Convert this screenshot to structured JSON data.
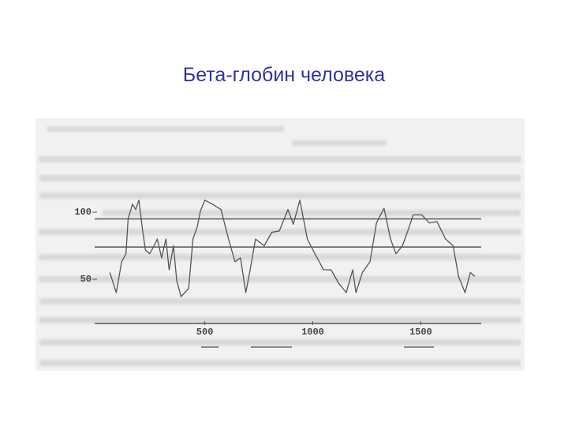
{
  "chart_data": {
    "type": "line",
    "title": "Бета-глобин человека",
    "x": [
      60,
      90,
      115,
      135,
      145,
      165,
      180,
      195,
      210,
      225,
      245,
      265,
      280,
      300,
      320,
      335,
      355,
      370,
      390,
      425,
      445,
      465,
      480,
      500,
      535,
      575,
      610,
      640,
      665,
      690,
      710,
      735,
      775,
      810,
      845,
      885,
      910,
      940,
      975,
      1010,
      1050,
      1085,
      1120,
      1155,
      1185,
      1200,
      1230,
      1265,
      1295,
      1330,
      1360,
      1385,
      1415,
      1440,
      1465,
      1505,
      1540,
      1575,
      1615,
      1650,
      1675,
      1705,
      1730,
      1750
    ],
    "series": [
      {
        "color": "#555555",
        "values": [
          55,
          40,
          63,
          69,
          95,
          106,
          102,
          109,
          89,
          72,
          69,
          75,
          80,
          66,
          80,
          57,
          75,
          49,
          37,
          43,
          80,
          89,
          101,
          109,
          106,
          102,
          80,
          63,
          66,
          40,
          57,
          80,
          75,
          85,
          86,
          102,
          91,
          109,
          80,
          69,
          57,
          57,
          47,
          40,
          57,
          40,
          55,
          63,
          92,
          103,
          80,
          69,
          75,
          86,
          98,
          98,
          92,
          93,
          80,
          75,
          52,
          40,
          55,
          52
        ]
      }
    ],
    "hlines": [
      95,
      74
    ],
    "xlim": [
      -10,
      1780
    ],
    "ylim": [
      17,
      110
    ],
    "xticks": [
      500,
      1000,
      1500
    ],
    "yticks": [
      50,
      100
    ]
  }
}
